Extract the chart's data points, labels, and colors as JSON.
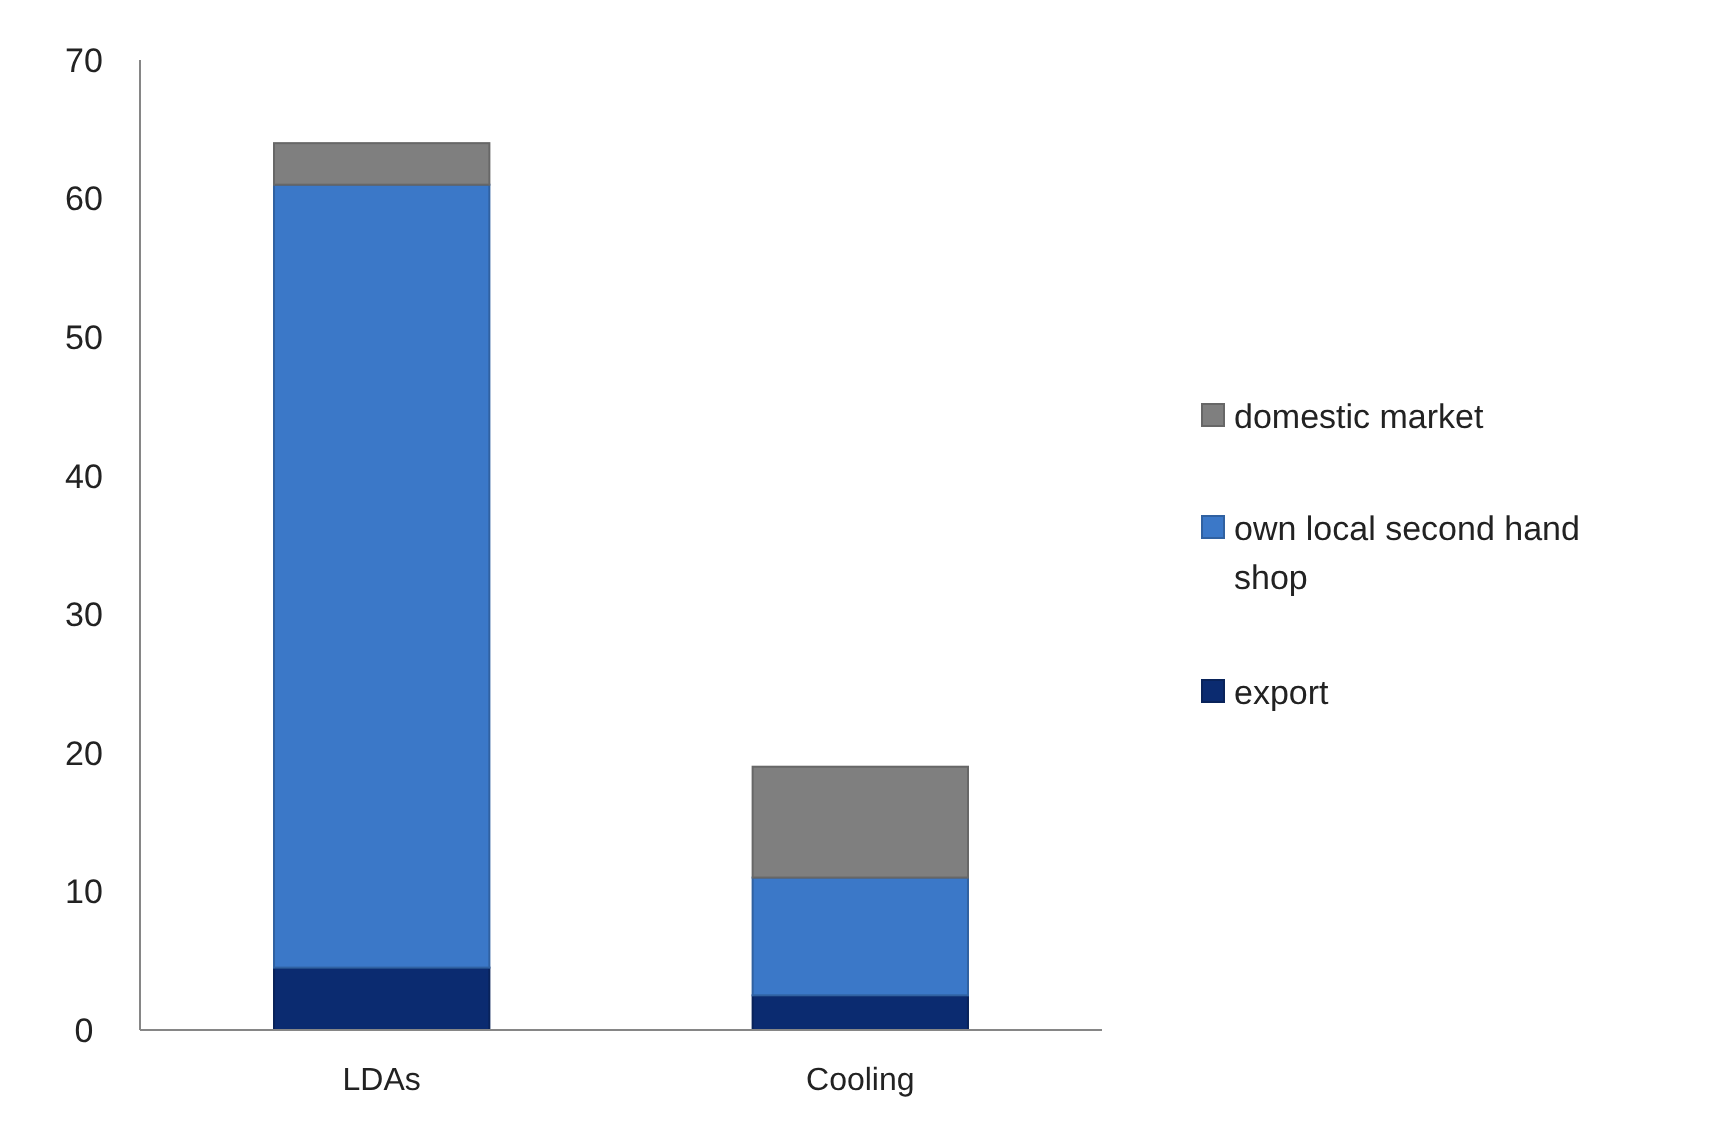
{
  "chart_data": {
    "type": "bar",
    "stacked": true,
    "categories": [
      "LDAs",
      "Cooling"
    ],
    "series": [
      {
        "name": "export",
        "color": "#0b2b70",
        "values": [
          4.5,
          2.5
        ]
      },
      {
        "name": "own local second hand shop",
        "color": "#3b78c8",
        "values": [
          56.5,
          8.5
        ]
      },
      {
        "name": "domestic market",
        "color": "#7f7f7f",
        "values": [
          3,
          8
        ]
      }
    ],
    "ylim": [
      0,
      70
    ],
    "yticks": [
      0,
      10,
      20,
      30,
      40,
      50,
      60,
      70
    ],
    "grid": false,
    "legend": "right"
  }
}
